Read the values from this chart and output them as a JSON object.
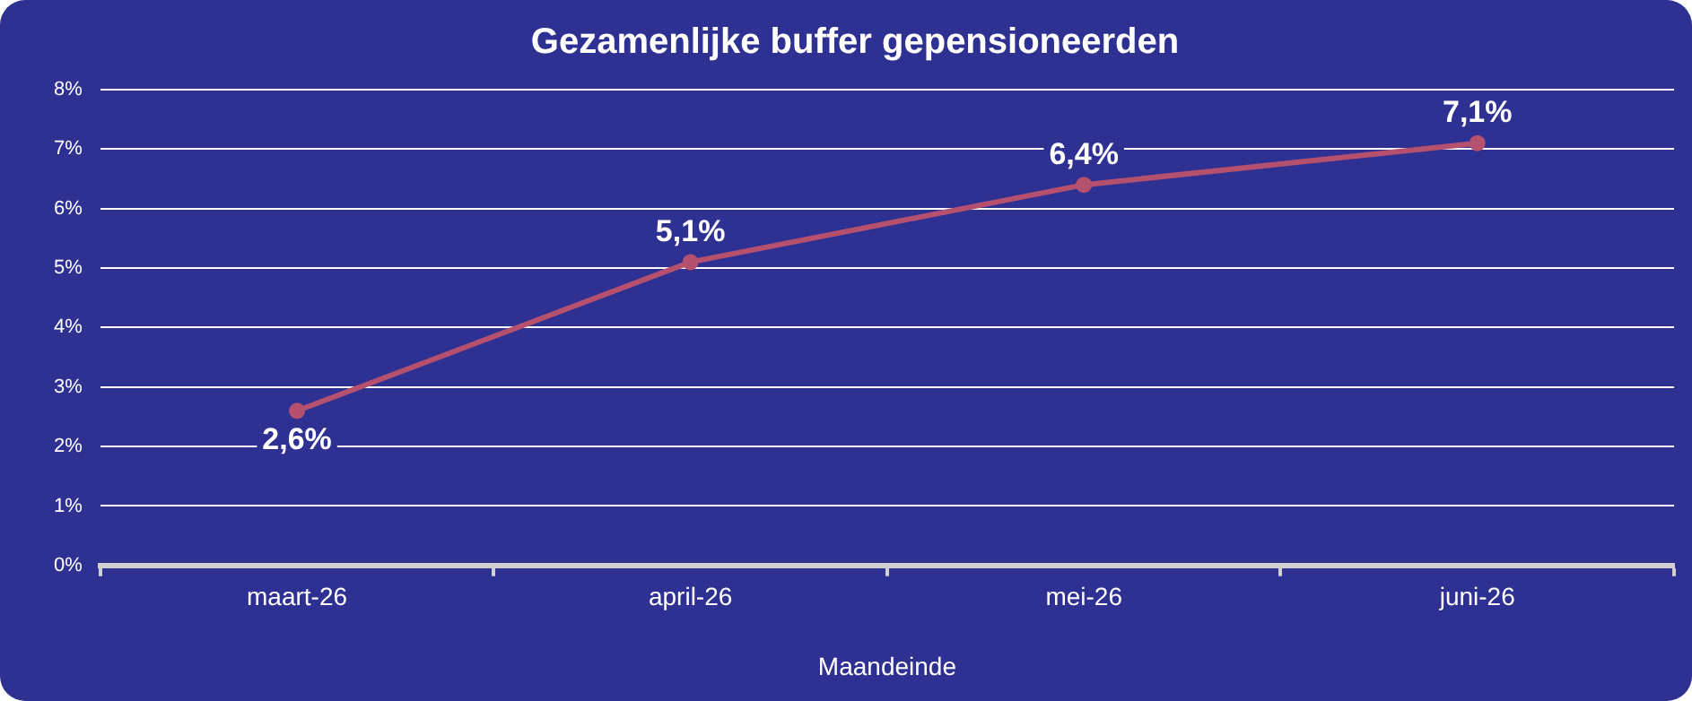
{
  "chart_data": {
    "type": "line",
    "title": "Gezamenlijke buffer gepensioneerden",
    "xlabel": "Maandeinde",
    "categories": [
      "maart-26",
      "april-26",
      "mei-26",
      "juni-26"
    ],
    "series": [
      {
        "color": "#b5506f",
        "values": [
          2.6,
          5.1,
          6.4,
          7.1
        ],
        "value_labels": [
          "2,6%",
          "5,1%",
          "6,4%",
          "7,1%"
        ]
      }
    ],
    "ylim": [
      0,
      8
    ],
    "yticks": [
      {
        "value": 0,
        "label": "0%"
      },
      {
        "value": 1,
        "label": "1%"
      },
      {
        "value": 2,
        "label": "2%"
      },
      {
        "value": 3,
        "label": "3%"
      },
      {
        "value": 4,
        "label": "4%"
      },
      {
        "value": 5,
        "label": "5%"
      },
      {
        "value": 6,
        "label": "6%"
      },
      {
        "value": 7,
        "label": "7%"
      },
      {
        "value": 8,
        "label": "8%"
      }
    ],
    "grid": "y",
    "legend": false,
    "marker": "circle",
    "line_style": "solid"
  }
}
